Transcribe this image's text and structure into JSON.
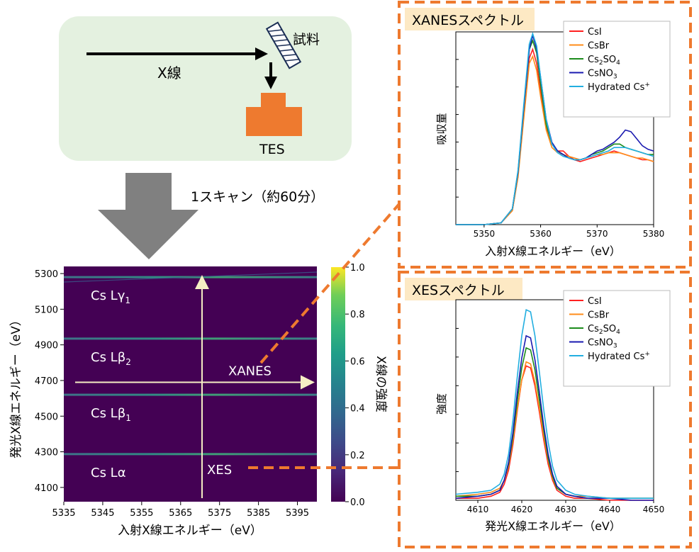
{
  "setup": {
    "beam_label": "X線",
    "sample_label": "試料",
    "detector_label": "TES",
    "scan_label": "1スキャン（約60分）"
  },
  "map": {
    "ylabel": "発光X線エネルギー（eV）",
    "xlabel": "入射X線エネルギー（eV）",
    "colorbar_label": "X線の強度",
    "xticks": [
      "5335",
      "5345",
      "5355",
      "5365",
      "5375",
      "5385",
      "5395"
    ],
    "yticks": [
      "4100",
      "4300",
      "4500",
      "4700",
      "4900",
      "5100",
      "5300"
    ],
    "cticks": [
      "0.0",
      "0.2",
      "0.4",
      "0.6",
      "0.8",
      "1.0"
    ],
    "lines": [
      {
        "name": "Cs Lγ1",
        "label": "Cs Lγ",
        "sub": "1",
        "emission_ev": 5280
      },
      {
        "name": "Cs Lβ2",
        "label": "Cs Lβ",
        "sub": "2",
        "emission_ev": 4935
      },
      {
        "name": "Cs Lβ1",
        "label": "Cs Lβ",
        "sub": "1",
        "emission_ev": 4620
      },
      {
        "name": "Cs Lα",
        "label": "Cs Lα",
        "sub": "",
        "emission_ev": 4287
      }
    ],
    "xanes_label": "XANES",
    "xes_label": "XES",
    "xanes_cut_emission_ev": 4690,
    "xes_cut_incident_ev": 5370.5
  },
  "chart_data": [
    {
      "type": "heatmap",
      "xlabel": "入射X線エネルギー（eV）",
      "ylabel": "発光X線エネルギー（eV）",
      "xlim": [
        5335,
        5400
      ],
      "ylim": [
        4020,
        5340
      ],
      "colorbar": {
        "label": "X線の強度",
        "range": [
          0.0,
          1.0
        ]
      },
      "emission_lines_ev": [
        5280,
        4935,
        4620,
        4287
      ]
    },
    {
      "type": "line",
      "title": "XANESスペクトル",
      "xlabel": "入射X線エネルギー（eV）",
      "ylabel": "吸収量",
      "xlim": [
        5345,
        5380
      ],
      "ylim": [
        0,
        1.1
      ],
      "xticks": [
        5350,
        5360,
        5370,
        5380
      ],
      "legend": "top-right",
      "x": [
        5345,
        5350,
        5353,
        5355,
        5356,
        5357,
        5358,
        5358.6,
        5359.3,
        5360,
        5361,
        5362,
        5363,
        5364,
        5365,
        5366,
        5367,
        5368,
        5369,
        5370,
        5371,
        5372,
        5373,
        5374,
        5375,
        5376,
        5377,
        5378,
        5379,
        5380
      ],
      "series": [
        {
          "name": "CsI",
          "color": "#ff2020",
          "values": [
            0.0,
            0.0,
            0.01,
            0.08,
            0.28,
            0.62,
            0.95,
            1.0,
            0.92,
            0.76,
            0.56,
            0.46,
            0.42,
            0.42,
            0.39,
            0.37,
            0.36,
            0.37,
            0.38,
            0.39,
            0.4,
            0.41,
            0.42,
            0.41,
            0.4,
            0.39,
            0.38,
            0.37,
            0.37,
            0.36
          ]
        },
        {
          "name": "CsBr",
          "color": "#ff8c1a",
          "values": [
            0.0,
            0.0,
            0.01,
            0.08,
            0.27,
            0.6,
            0.92,
            0.96,
            0.88,
            0.73,
            0.54,
            0.44,
            0.41,
            0.4,
            0.39,
            0.38,
            0.37,
            0.38,
            0.39,
            0.4,
            0.4,
            0.41,
            0.41,
            0.41,
            0.4,
            0.39,
            0.38,
            0.38,
            0.37,
            0.36
          ]
        },
        {
          "name": "Cs2SO4",
          "color": "#1c8c1c",
          "values": [
            0.0,
            0.0,
            0.01,
            0.09,
            0.3,
            0.66,
            1.0,
            1.05,
            0.98,
            0.8,
            0.57,
            0.46,
            0.42,
            0.4,
            0.38,
            0.37,
            0.37,
            0.38,
            0.4,
            0.41,
            0.42,
            0.44,
            0.46,
            0.46,
            0.44,
            0.43,
            0.42,
            0.41,
            0.4,
            0.4
          ]
        },
        {
          "name": "CsNO3",
          "color": "#1a1ab0",
          "values": [
            0.0,
            0.0,
            0.01,
            0.09,
            0.3,
            0.66,
            1.0,
            1.08,
            1.0,
            0.84,
            0.6,
            0.47,
            0.42,
            0.4,
            0.38,
            0.37,
            0.37,
            0.38,
            0.4,
            0.42,
            0.43,
            0.45,
            0.47,
            0.5,
            0.54,
            0.53,
            0.49,
            0.45,
            0.43,
            0.42
          ]
        },
        {
          "name": "Hydrated Cs+",
          "color": "#22aee0",
          "values": [
            0.0,
            0.0,
            0.01,
            0.09,
            0.31,
            0.68,
            1.03,
            1.09,
            1.02,
            0.84,
            0.6,
            0.46,
            0.41,
            0.39,
            0.38,
            0.37,
            0.37,
            0.38,
            0.39,
            0.4,
            0.41,
            0.42,
            0.44,
            0.44,
            0.44,
            0.43,
            0.42,
            0.41,
            0.4,
            0.39
          ]
        }
      ]
    },
    {
      "type": "line",
      "title": "XESスペクトル",
      "xlabel": "発光X線エネルギー（eV）",
      "ylabel": "強度",
      "xlim": [
        4605,
        4650
      ],
      "ylim": [
        0,
        1.0
      ],
      "xticks": [
        4610,
        4620,
        4630,
        4640,
        4650
      ],
      "legend": "top-right",
      "x": [
        4605,
        4610,
        4613,
        4615,
        4616,
        4617,
        4618,
        4619,
        4620,
        4621,
        4622,
        4623,
        4624,
        4625,
        4626,
        4627,
        4628,
        4630,
        4632,
        4635,
        4640,
        4645,
        4650
      ],
      "series": [
        {
          "name": "CsI",
          "color": "#ff2020",
          "values": [
            0.01,
            0.01,
            0.02,
            0.04,
            0.08,
            0.15,
            0.28,
            0.45,
            0.6,
            0.67,
            0.66,
            0.57,
            0.44,
            0.3,
            0.18,
            0.1,
            0.05,
            0.02,
            0.01,
            0.01,
            0.0,
            0.0,
            0.0
          ]
        },
        {
          "name": "CsBr",
          "color": "#ff8c1a",
          "values": [
            0.02,
            0.03,
            0.04,
            0.06,
            0.1,
            0.17,
            0.3,
            0.46,
            0.6,
            0.69,
            0.68,
            0.59,
            0.46,
            0.32,
            0.2,
            0.11,
            0.06,
            0.03,
            0.02,
            0.02,
            0.01,
            0.01,
            0.01
          ]
        },
        {
          "name": "Cs2SO4",
          "color": "#1c8c1c",
          "values": [
            0.02,
            0.02,
            0.03,
            0.05,
            0.1,
            0.18,
            0.32,
            0.5,
            0.66,
            0.76,
            0.75,
            0.65,
            0.5,
            0.35,
            0.21,
            0.12,
            0.06,
            0.03,
            0.02,
            0.01,
            0.01,
            0.01,
            0.01
          ]
        },
        {
          "name": "CsNO3",
          "color": "#1a1ab0",
          "values": [
            0.01,
            0.02,
            0.03,
            0.05,
            0.1,
            0.19,
            0.34,
            0.54,
            0.71,
            0.82,
            0.81,
            0.7,
            0.54,
            0.37,
            0.23,
            0.13,
            0.07,
            0.03,
            0.02,
            0.01,
            0.01,
            0.0,
            0.0
          ]
        },
        {
          "name": "Hydrated Cs+",
          "color": "#22aee0",
          "values": [
            0.03,
            0.04,
            0.05,
            0.08,
            0.13,
            0.23,
            0.4,
            0.62,
            0.82,
            0.95,
            0.94,
            0.82,
            0.64,
            0.45,
            0.29,
            0.17,
            0.1,
            0.05,
            0.03,
            0.02,
            0.01,
            0.01,
            0.01
          ]
        }
      ]
    }
  ]
}
